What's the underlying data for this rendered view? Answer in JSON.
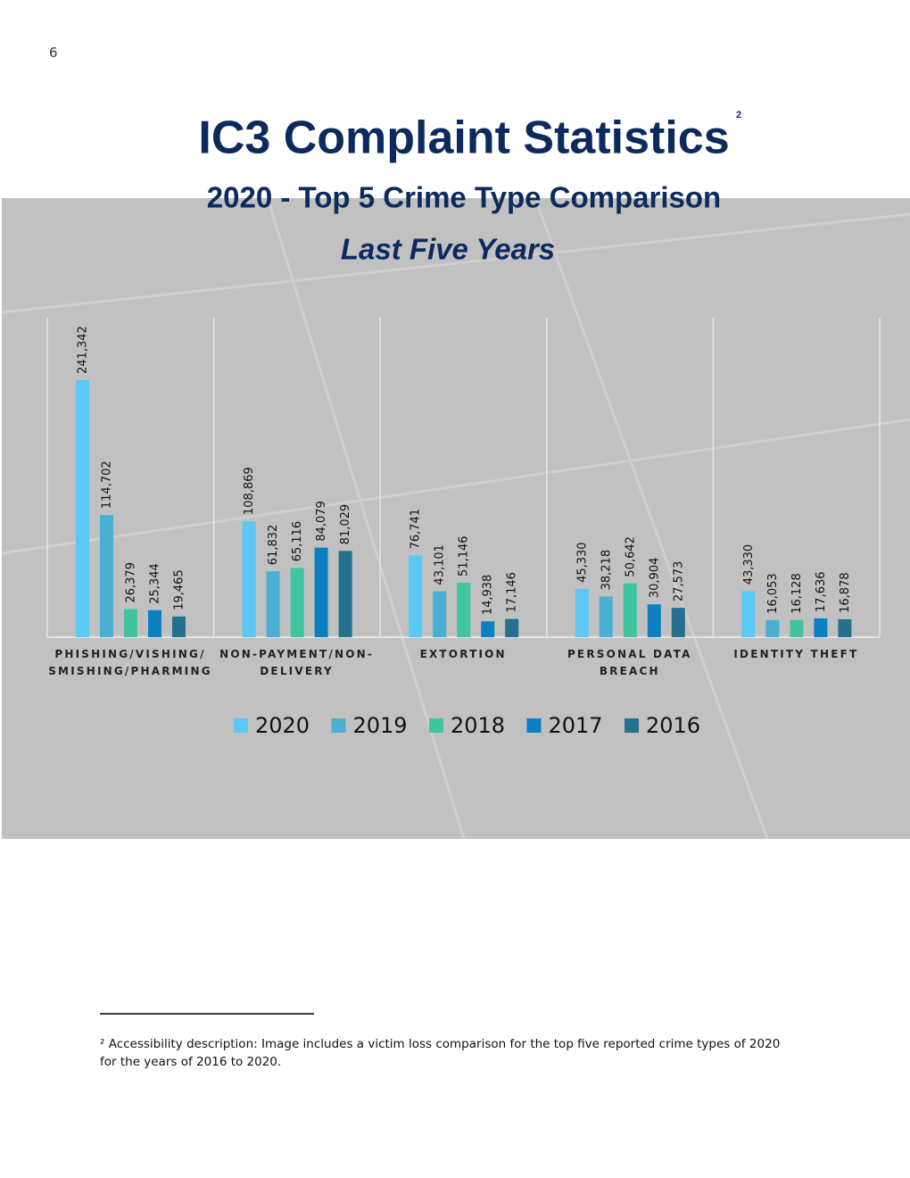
{
  "page_number": "6",
  "title": "IC3 Complaint Statistics",
  "title_footnote_mark": "2",
  "chart_data": {
    "type": "bar",
    "title": "2020 - Top 5 Crime Type Comparison",
    "subtitle": "Last Five Years",
    "categories": [
      "PHISHING/VISHING/\nSMISHING/PHARMING",
      "NON-PAYMENT/NON-\nDELIVERY",
      "EXTORTION",
      "PERSONAL DATA\nBREACH",
      "IDENTITY THEFT"
    ],
    "series": [
      {
        "name": "2020",
        "color": "#5bc8f5",
        "values": [
          241342,
          108869,
          76741,
          45330,
          43330
        ],
        "value_labels": [
          "241,342",
          "108,869",
          "76,741",
          "45,330",
          "43,330"
        ]
      },
      {
        "name": "2019",
        "color": "#4ab0d3",
        "values": [
          114702,
          61832,
          43101,
          38218,
          16053
        ],
        "value_labels": [
          "114,702",
          "61,832",
          "43,101",
          "38,218",
          "16,053"
        ]
      },
      {
        "name": "2018",
        "color": "#41c4a0",
        "values": [
          26379,
          65116,
          51146,
          50642,
          16128
        ],
        "value_labels": [
          "26,379",
          "65,116",
          "51,146",
          "50,642",
          "16,128"
        ]
      },
      {
        "name": "2017",
        "color": "#0b7fc1",
        "values": [
          25344,
          84079,
          14938,
          30904,
          17636
        ],
        "value_labels": [
          "25,344",
          "84,079",
          "14,938",
          "30,904",
          "17,636"
        ]
      },
      {
        "name": "2016",
        "color": "#24718f",
        "values": [
          19465,
          81029,
          17146,
          27573,
          16878
        ],
        "value_labels": [
          "19,465",
          "81,029",
          "17,146",
          "27,573",
          "16,878"
        ]
      }
    ],
    "legend": "bottom"
  },
  "footnote": "² Accessibility description: Image includes a victim loss comparison for the top five reported crime types of 2020 for the years of 2016 to 2020."
}
